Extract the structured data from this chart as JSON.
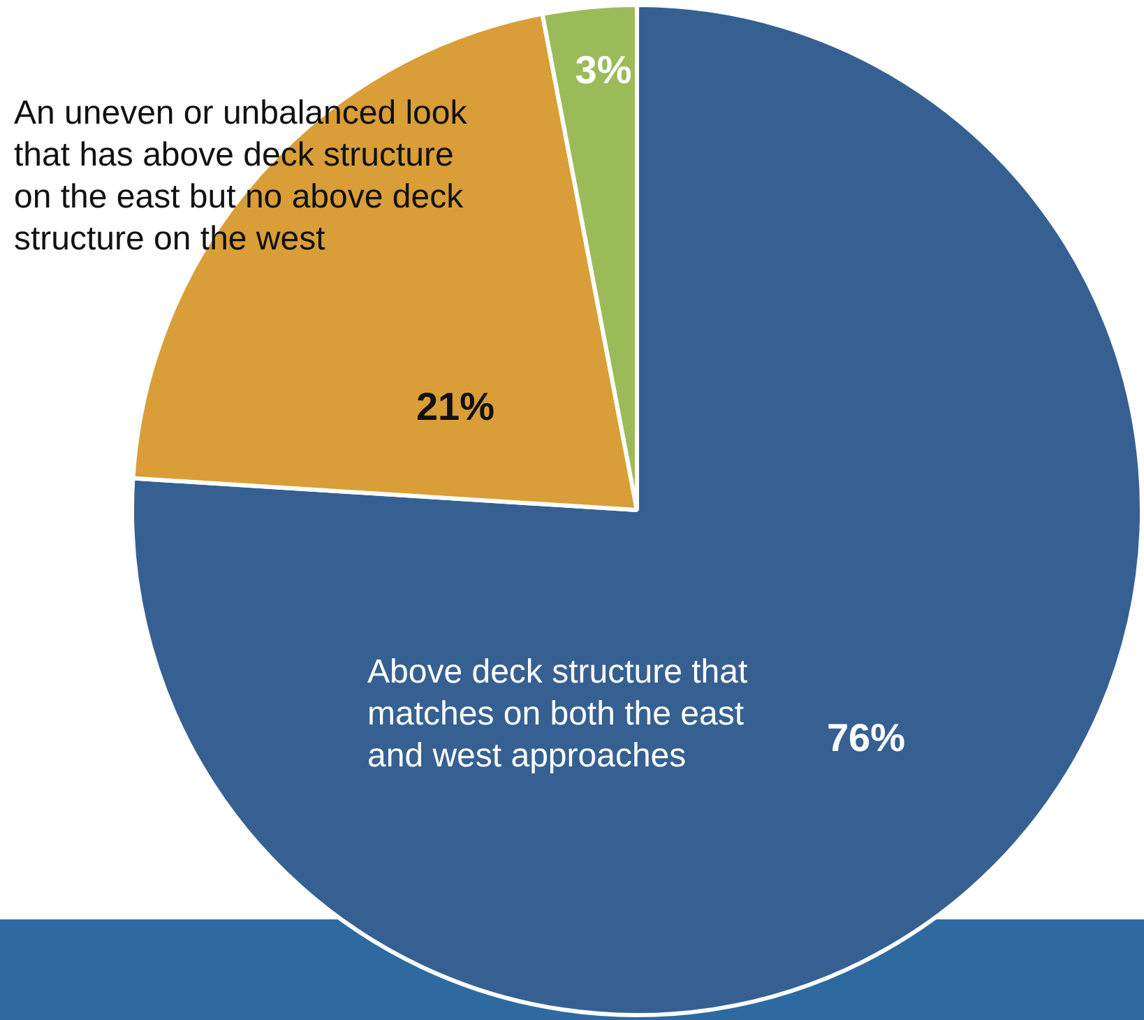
{
  "chart_data": {
    "type": "pie",
    "categories": [
      "Above deck structure that matches on both the east and west approaches",
      "An uneven or unbalanced look that has above deck structure on the east but no above deck structure on the west",
      null
    ],
    "values": [
      76,
      21,
      3
    ],
    "colors": [
      "#366092",
      "#d99e38",
      "#9bbb59"
    ],
    "value_labels": [
      "76%",
      "21%",
      "3%"
    ],
    "legend": false
  }
}
